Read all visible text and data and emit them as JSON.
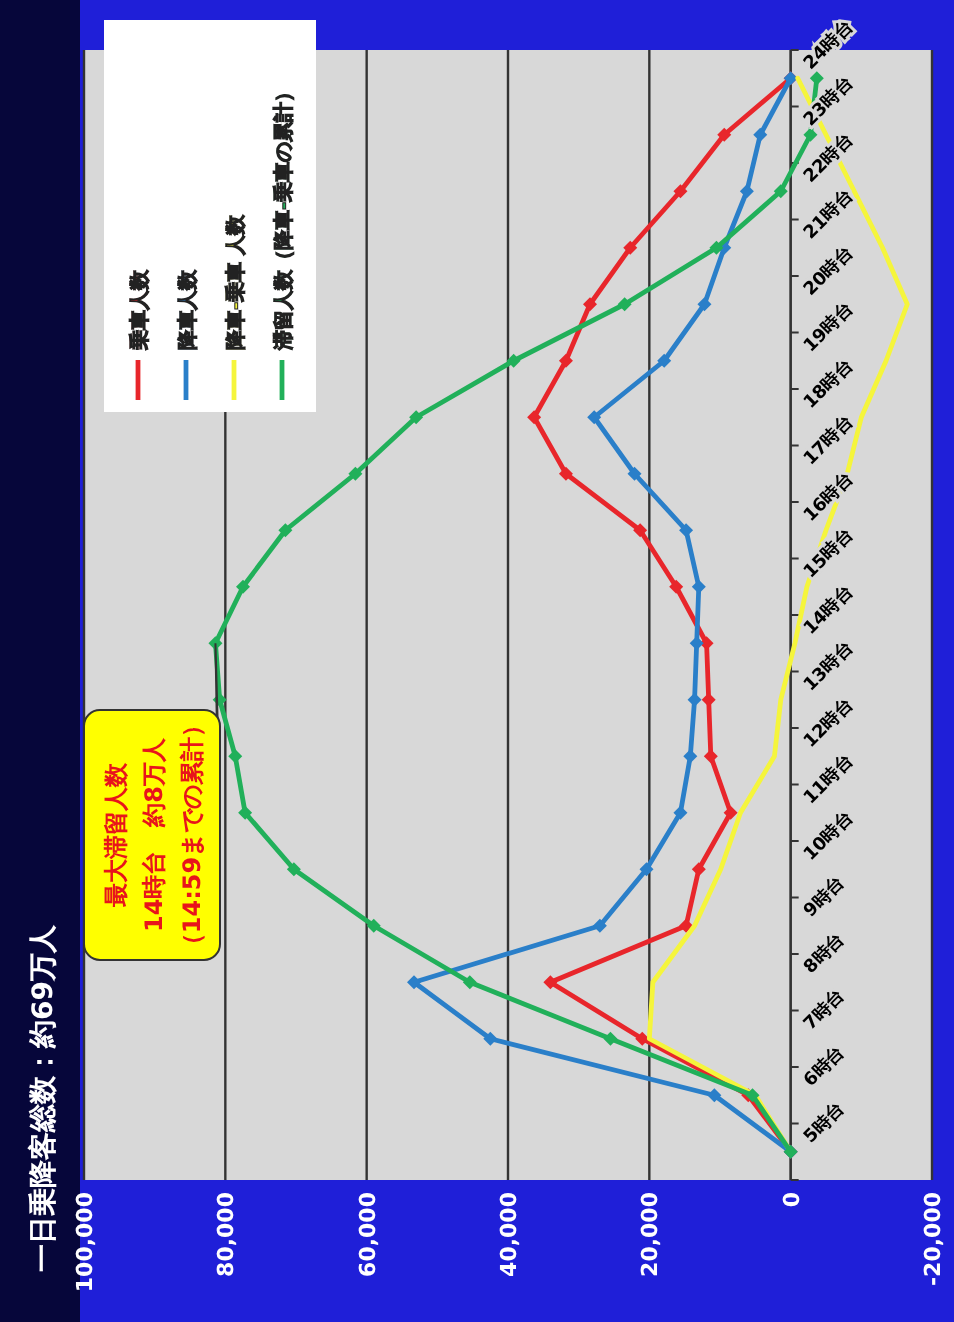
{
  "chart_data": {
    "type": "line",
    "title": "一日乗降客総数：約69万人",
    "orientation": "horizontal",
    "categories": [
      "24時台",
      "23時台",
      "22時台",
      "21時台",
      "20時台",
      "19時台",
      "18時台",
      "17時台",
      "16時台",
      "15時台",
      "14時台",
      "13時台",
      "12時台",
      "11時台",
      "10時台",
      "9時台",
      "8時台",
      "7時台",
      "6時台",
      "5時台"
    ],
    "series": [
      {
        "name": "乗車人数",
        "color": "#e8262b",
        "values": [
          0,
          9400,
          15600,
          22700,
          28400,
          31800,
          36300,
          31800,
          21300,
          16200,
          11900,
          11600,
          11300,
          8500,
          13000,
          14800,
          34000,
          21000,
          6000,
          0
        ]
      },
      {
        "name": "降車人数",
        "color": "#2a7fc9",
        "values": [
          0,
          4300,
          6200,
          9400,
          12200,
          17900,
          27800,
          22100,
          14800,
          13000,
          13300,
          13600,
          14200,
          15600,
          20400,
          27000,
          53300,
          42500,
          10800,
          0
        ]
      },
      {
        "name": "降車-乗車 人数",
        "color": "#f5f53c",
        "marker": "none",
        "values": [
          -1000,
          -5000,
          -9000,
          -13000,
          -16500,
          -13500,
          -10000,
          -8000,
          -5000,
          -2300,
          -600,
          1400,
          2300,
          7100,
          9900,
          13600,
          19500,
          20000,
          5000,
          0
        ]
      },
      {
        "name": "滞留人数（降車-乗車の累計）",
        "color": "#21b05a",
        "values": [
          -3700,
          -2800,
          1400,
          10500,
          23500,
          39200,
          53000,
          61600,
          71500,
          77500,
          81400,
          80800,
          78600,
          77200,
          70300,
          59000,
          45400,
          25500,
          5400,
          0
        ]
      }
    ],
    "xlim": [
      100000,
      -20000
    ],
    "xticks": [
      {
        "value": 100000,
        "label": "100,000"
      },
      {
        "value": 80000,
        "label": "80,000"
      },
      {
        "value": 60000,
        "label": "60,000"
      },
      {
        "value": 40000,
        "label": "40,000"
      },
      {
        "value": 20000,
        "label": "20,000"
      },
      {
        "value": 0,
        "label": "0"
      },
      {
        "value": -20000,
        "label": "-20,000"
      }
    ],
    "grid": "x",
    "legend": "top left",
    "marker": "diamond",
    "line_style": "solid",
    "annotations": [
      "最大滞留人数",
      "14時台　約8万人",
      "（14:59までの累計）"
    ]
  }
}
